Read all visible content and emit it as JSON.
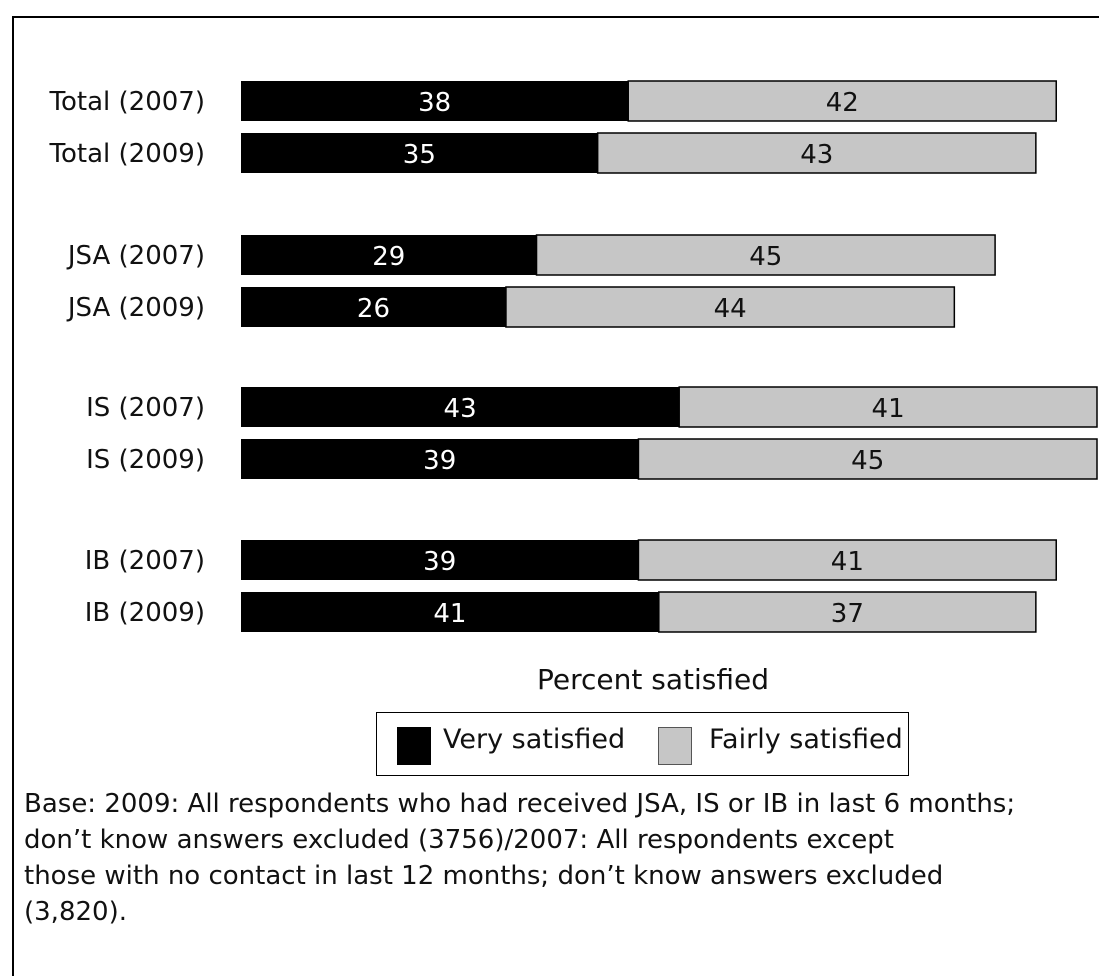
{
  "chart_data": {
    "type": "bar",
    "orientation": "horizontal",
    "stacked": true,
    "categories": [
      "Total (2007)",
      "Total (2009)",
      "JSA (2007)",
      "JSA (2009)",
      "IS (2007)",
      "IS (2009)",
      "IB (2007)",
      "IB (2009)"
    ],
    "series": [
      {
        "name": "Very satisfied",
        "color": "#000000",
        "values": [
          38,
          35,
          29,
          26,
          43,
          39,
          39,
          41
        ]
      },
      {
        "name": "Fairly satisfied",
        "color": "#c6c6c6",
        "values": [
          42,
          43,
          45,
          44,
          41,
          45,
          41,
          37
        ]
      }
    ],
    "xlabel": "Percent satisfied",
    "ylabel": "",
    "xlim": [
      0,
      84
    ],
    "grid": false,
    "legend_position": "bottom-center"
  },
  "note_lines": [
    "Base: 2009: All respondents  who had received JSA, IS or IB in last 6 months;",
    "don’t know answers excluded (3756)/2007: All respondents except",
    "those with no contact in last 12 months; don’t know answers excluded",
    "(3,820)."
  ]
}
